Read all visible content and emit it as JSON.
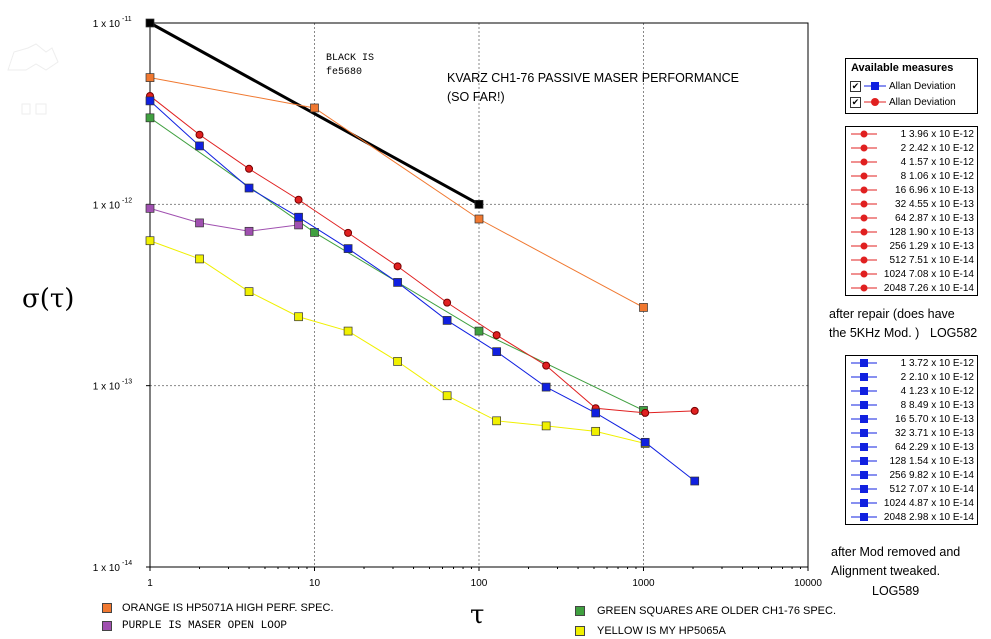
{
  "chart_data": {
    "type": "scatter",
    "xscale": "log",
    "yscale": "log",
    "xlim": [
      1,
      10000
    ],
    "ylim": [
      1e-14,
      1e-11
    ],
    "xticks": [
      "1",
      "10",
      "100",
      "1000",
      "10000"
    ],
    "yticks": [
      "1 x 10",
      "1 x 10",
      "1 x 10",
      "1 x 10"
    ],
    "ytick_exponents": [
      "-14",
      "-13",
      "-12",
      "-11"
    ],
    "xlabel": "τ",
    "ylabel": "σ(τ)",
    "grid": true,
    "series": [
      {
        "color": "#000000",
        "marker": "square",
        "x": [
          1,
          100
        ],
        "y": [
          1e-11,
          1e-12
        ]
      },
      {
        "color": "#f07830",
        "marker": "square",
        "x": [
          1,
          10,
          100,
          1000
        ],
        "y": [
          5e-12,
          3.4e-12,
          8.3e-13,
          2.7e-13
        ]
      },
      {
        "color": "#40a040",
        "marker": "square",
        "x": [
          1,
          10,
          100,
          1000
        ],
        "y": [
          3e-12,
          7e-13,
          2e-13,
          7.3e-14
        ]
      },
      {
        "color": "#a050b0",
        "marker": "square",
        "x": [
          1,
          2,
          4,
          8
        ],
        "y": [
          9.5e-13,
          7.9e-13,
          7.1e-13,
          7.7e-13
        ]
      },
      {
        "color": "#f0f000",
        "marker": "square",
        "x": [
          1,
          2,
          4,
          8,
          16,
          32,
          64,
          128,
          256,
          512,
          1024
        ],
        "y": [
          6.3e-13,
          5e-13,
          3.3e-13,
          2.4e-13,
          2e-13,
          1.36e-13,
          8.8e-14,
          6.4e-14,
          6e-14,
          5.6e-14,
          4.8e-14
        ]
      },
      {
        "name": "Allan Deviation",
        "color": "#e02020",
        "marker": "circle",
        "x": [
          1,
          2,
          4,
          8,
          16,
          32,
          64,
          128,
          256,
          512,
          1024,
          2048
        ],
        "y": [
          3.96e-12,
          2.42e-12,
          1.57e-12,
          1.06e-12,
          6.96e-13,
          4.55e-13,
          2.87e-13,
          1.9e-13,
          1.29e-13,
          7.51e-14,
          7.08e-14,
          7.26e-14
        ]
      },
      {
        "name": "Allan Deviation",
        "color": "#1020e0",
        "marker": "square",
        "x": [
          1,
          2,
          4,
          8,
          16,
          32,
          64,
          128,
          256,
          512,
          1024,
          2048
        ],
        "y": [
          3.72e-12,
          2.1e-12,
          1.23e-12,
          8.49e-13,
          5.7e-13,
          3.71e-13,
          2.29e-13,
          1.54e-13,
          9.82e-14,
          7.07e-14,
          4.87e-14,
          2.98e-14
        ]
      }
    ],
    "annotations": [
      "BLACK IS",
      "fe5680",
      "KVARZ CH1-76 PASSIVE MASER PERFORMANCE",
      "(SO FAR!)"
    ]
  },
  "legend": {
    "title": "Available measures",
    "items": [
      {
        "label": "Allan Deviation",
        "color": "#1020e0",
        "marker": "square",
        "checked": "✔"
      },
      {
        "label": "Allan Deviation",
        "color": "#e02020",
        "marker": "circle",
        "checked": "✔"
      }
    ]
  },
  "table_red": [
    "1 3.96 x 10 E-12",
    "2 2.42 x 10 E-12",
    "4 1.57 x 10 E-12",
    "8 1.06 x 10 E-12",
    "16 6.96 x 10 E-13",
    "32 4.55 x 10 E-13",
    "64 2.87 x 10 E-13",
    "128 1.90 x 10 E-13",
    "256 1.29 x 10 E-13",
    "512 7.51 x 10 E-14",
    "1024 7.08 x 10 E-14",
    "2048 7.26 x 10 E-14"
  ],
  "table_blue": [
    "1 3.72 x 10 E-12",
    "2 2.10 x 10 E-12",
    "4 1.23 x 10 E-12",
    "8 8.49 x 10 E-13",
    "16 5.70 x 10 E-13",
    "32 3.71 x 10 E-13",
    "64 2.29 x 10 E-13",
    "128 1.54 x 10 E-13",
    "256 9.82 x 10 E-14",
    "512 7.07 x 10 E-14",
    "1024 4.87 x 10 E-14",
    "2048 2.98 x 10 E-14"
  ],
  "notes": {
    "repair_1": "after repair (does have",
    "repair_2": "the 5KHz Mod. )",
    "repair_log": "LOG582",
    "mod_1": "after Mod removed and",
    "mod_2": "Alignment tweaked.",
    "mod_log": "LOG589"
  },
  "bottom_legend": [
    {
      "color": "#f07830",
      "label": "ORANGE IS HP5071A HIGH PERF. SPEC."
    },
    {
      "color": "#a050b0",
      "label": "PURPLE IS MASER OPEN LOOP"
    },
    {
      "color": "#40a040",
      "label": "GREEN SQUARES ARE OLDER CH1-76 SPEC."
    },
    {
      "color": "#f0f000",
      "label": "YELLOW IS MY HP5065A"
    }
  ]
}
